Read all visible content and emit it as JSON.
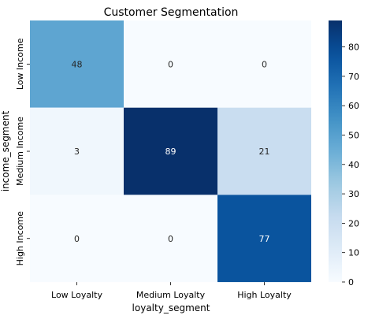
{
  "chart_data": {
    "type": "heatmap",
    "title": "Customer Segmentation",
    "xlabel": "loyalty_segment",
    "ylabel": "income_segment",
    "x_categories": [
      "Low Loyalty",
      "Medium Loyalty",
      "High Loyalty"
    ],
    "y_categories": [
      "Low Income",
      "Medium Income",
      "High Income"
    ],
    "values": [
      [
        48,
        0,
        0
      ],
      [
        3,
        89,
        21
      ],
      [
        0,
        0,
        77
      ]
    ],
    "annotations": true,
    "colormap": "Blues",
    "color_range": [
      0,
      89
    ],
    "colorbar_ticks": [
      0,
      10,
      20,
      30,
      40,
      50,
      60,
      70,
      80
    ],
    "grid": false
  }
}
